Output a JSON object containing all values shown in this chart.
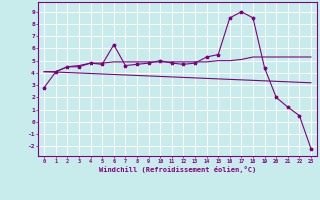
{
  "title": "",
  "xlabel": "Windchill (Refroidissement éolien,°C)",
  "background_color": "#c8ecec",
  "line_color": "#800080",
  "grid_color": "#ffffff",
  "x_values": [
    0,
    1,
    2,
    3,
    4,
    5,
    6,
    7,
    8,
    9,
    10,
    11,
    12,
    13,
    14,
    15,
    16,
    17,
    18,
    19,
    20,
    21,
    22,
    23
  ],
  "series_main": [
    2.8,
    4.1,
    4.5,
    4.5,
    4.8,
    4.7,
    6.3,
    4.6,
    4.7,
    4.8,
    5.0,
    4.8,
    4.7,
    4.8,
    5.3,
    5.5,
    8.5,
    9.0,
    8.5,
    4.4,
    2.0,
    1.2,
    0.5,
    -2.2
  ],
  "series_flat": [
    4.1,
    4.1,
    4.5,
    4.6,
    4.8,
    4.8,
    4.9,
    4.9,
    4.9,
    4.9,
    4.9,
    4.9,
    4.9,
    4.9,
    4.9,
    5.0,
    5.0,
    5.1,
    5.3,
    5.3,
    5.3,
    5.3,
    5.3,
    5.3
  ],
  "series_diagonal": [
    4.1,
    4.07,
    4.03,
    3.99,
    3.95,
    3.91,
    3.87,
    3.83,
    3.79,
    3.75,
    3.71,
    3.67,
    3.63,
    3.59,
    3.55,
    3.51,
    3.47,
    3.43,
    3.39,
    3.35,
    3.31,
    3.27,
    3.23,
    3.19
  ],
  "ylim": [
    -2.8,
    9.8
  ],
  "xlim": [
    -0.5,
    23.5
  ],
  "yticks": [
    -2,
    -1,
    0,
    1,
    2,
    3,
    4,
    5,
    6,
    7,
    8,
    9
  ],
  "xticks": [
    0,
    1,
    2,
    3,
    4,
    5,
    6,
    7,
    8,
    9,
    10,
    11,
    12,
    13,
    14,
    15,
    16,
    17,
    18,
    19,
    20,
    21,
    22,
    23
  ]
}
